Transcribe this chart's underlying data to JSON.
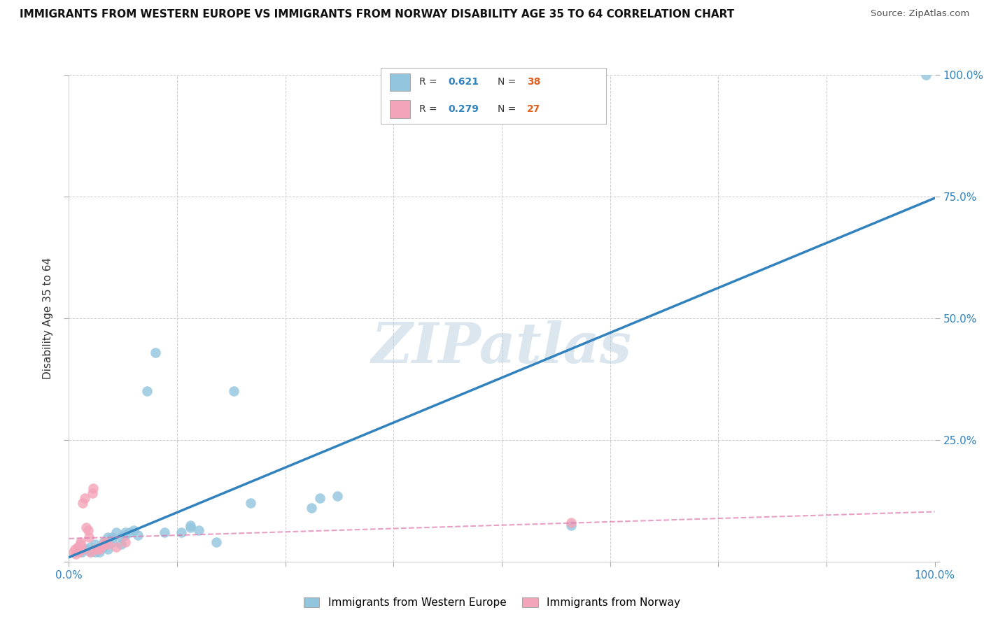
{
  "title": "IMMIGRANTS FROM WESTERN EUROPE VS IMMIGRANTS FROM NORWAY DISABILITY AGE 35 TO 64 CORRELATION CHART",
  "source": "Source: ZipAtlas.com",
  "ylabel": "Disability Age 35 to 64",
  "xmin": 0.0,
  "xmax": 1.0,
  "ymin": 0.0,
  "ymax": 1.0,
  "xticks": [
    0.0,
    0.125,
    0.25,
    0.375,
    0.5,
    0.625,
    0.75,
    0.875,
    1.0
  ],
  "yticks": [
    0.0,
    0.25,
    0.5,
    0.75,
    1.0
  ],
  "blue_R": 0.621,
  "blue_N": 38,
  "pink_R": 0.279,
  "pink_N": 27,
  "blue_color": "#92c5de",
  "pink_color": "#f4a4b8",
  "blue_line_color": "#3182bd",
  "pink_line_color": "#de77ae",
  "grid_color": "#cccccc",
  "watermark": "ZIPatlas",
  "legend_label_blue": "Immigrants from Western Europe",
  "legend_label_pink": "Immigrants from Norway",
  "blue_scatter_x": [
    0.015,
    0.02,
    0.025,
    0.025,
    0.03,
    0.03,
    0.03,
    0.035,
    0.04,
    0.04,
    0.04,
    0.045,
    0.045,
    0.05,
    0.05,
    0.055,
    0.06,
    0.06,
    0.065,
    0.065,
    0.07,
    0.075,
    0.08,
    0.09,
    0.1,
    0.11,
    0.13,
    0.14,
    0.14,
    0.15,
    0.17,
    0.19,
    0.21,
    0.28,
    0.29,
    0.31,
    0.58,
    0.99
  ],
  "blue_scatter_y": [
    0.02,
    0.025,
    0.02,
    0.03,
    0.02,
    0.025,
    0.035,
    0.02,
    0.03,
    0.035,
    0.04,
    0.025,
    0.05,
    0.04,
    0.05,
    0.06,
    0.035,
    0.05,
    0.055,
    0.06,
    0.06,
    0.065,
    0.055,
    0.35,
    0.43,
    0.06,
    0.06,
    0.07,
    0.075,
    0.065,
    0.04,
    0.35,
    0.12,
    0.11,
    0.13,
    0.135,
    0.075,
    1.0
  ],
  "pink_scatter_x": [
    0.005,
    0.007,
    0.008,
    0.009,
    0.01,
    0.012,
    0.013,
    0.013,
    0.015,
    0.016,
    0.018,
    0.02,
    0.022,
    0.023,
    0.025,
    0.027,
    0.028,
    0.03,
    0.032,
    0.035,
    0.037,
    0.04,
    0.042,
    0.045,
    0.055,
    0.065,
    0.58
  ],
  "pink_scatter_y": [
    0.02,
    0.025,
    0.015,
    0.025,
    0.03,
    0.02,
    0.035,
    0.04,
    0.025,
    0.12,
    0.13,
    0.07,
    0.065,
    0.05,
    0.02,
    0.14,
    0.15,
    0.025,
    0.025,
    0.025,
    0.03,
    0.035,
    0.04,
    0.035,
    0.03,
    0.04,
    0.08
  ],
  "background_color": "#ffffff"
}
